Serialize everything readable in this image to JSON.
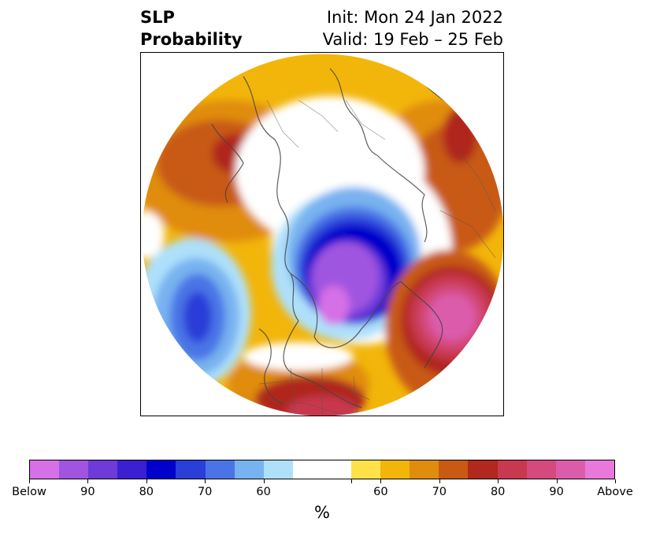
{
  "title": {
    "left_line1": "SLP",
    "left_line2": "Probability",
    "right_line1": "Init: Mon 24 Jan 2022",
    "right_line2": "Valid: 19 Feb – 25 Feb"
  },
  "colorbar": {
    "unit": "%",
    "segments": [
      "#d670e6",
      "#a054e0",
      "#6e3ad8",
      "#3b1fd2",
      "#0000cc",
      "#2a3ed8",
      "#4a74e6",
      "#78b2f0",
      "#aee0fa",
      "#ffffff",
      "#ffffff",
      "#ffe24a",
      "#f2b50a",
      "#e08c0c",
      "#c85a14",
      "#b0281e",
      "#c8384e",
      "#d44a7c",
      "#dc5cac",
      "#e878da"
    ],
    "labels": [
      {
        "text": "Below",
        "pos": 0
      },
      {
        "text": "90",
        "pos": 2
      },
      {
        "text": "80",
        "pos": 4
      },
      {
        "text": "70",
        "pos": 6
      },
      {
        "text": "60",
        "pos": 8
      },
      {
        "text": "60",
        "pos": 12
      },
      {
        "text": "70",
        "pos": 14
      },
      {
        "text": "80",
        "pos": 16
      },
      {
        "text": "90",
        "pos": 18
      },
      {
        "text": "Above",
        "pos": 20
      }
    ],
    "ticks": [
      0,
      2,
      4,
      6,
      8,
      11,
      12,
      14,
      16,
      18,
      20
    ]
  }
}
